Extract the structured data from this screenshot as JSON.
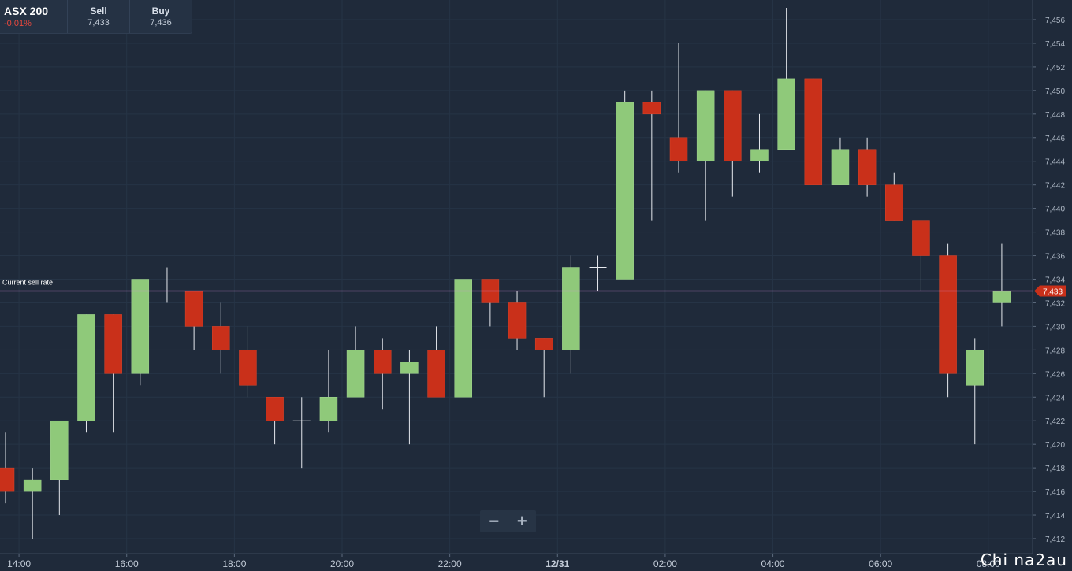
{
  "instrument": {
    "name": "ASX 200",
    "change": "-0.01%"
  },
  "sell": {
    "label": "Sell",
    "value": "7,433"
  },
  "buy": {
    "label": "Buy",
    "value": "7,436"
  },
  "zoom": {
    "minus": "−",
    "plus": "+"
  },
  "current_rate": {
    "label": "Current sell rate",
    "value": "7,433",
    "price": 7433
  },
  "colors": {
    "background": "#1f2a3a",
    "up": "#8fc97a",
    "down": "#c9301a",
    "rate_line": "#d68fd6",
    "rate_badge": "#c9301a"
  },
  "watermark": "Chi na2au",
  "chart_data": {
    "type": "candlestick",
    "y_range": [
      7411,
      7457
    ],
    "y_ticks": [
      7412,
      7414,
      7416,
      7418,
      7420,
      7422,
      7424,
      7426,
      7428,
      7430,
      7432,
      7434,
      7436,
      7438,
      7440,
      7442,
      7444,
      7446,
      7448,
      7450,
      7452,
      7454,
      7456
    ],
    "y_tick_labels": [
      "7,412",
      "7,414",
      "7,416",
      "7,418",
      "7,420",
      "7,422",
      "7,424",
      "7,426",
      "7,428",
      "7,430",
      "7,432",
      "7,434",
      "7,436",
      "7,438",
      "7,440",
      "7,442",
      "7,444",
      "7,446",
      "7,448",
      "7,450",
      "7,452",
      "7,454",
      "7,456"
    ],
    "x_tick_labels": [
      "14:00",
      "16:00",
      "18:00",
      "20:00",
      "22:00",
      "12/31",
      "02:00",
      "04:00",
      "06:00",
      "08:00"
    ],
    "x_tick_candle_index": [
      0.5,
      4.5,
      8.5,
      12.5,
      16.5,
      20.5,
      24.5,
      28.5,
      32.5,
      36.5
    ],
    "candles": [
      {
        "o": 7418,
        "h": 7421,
        "l": 7415,
        "c": 7416
      },
      {
        "o": 7416,
        "h": 7418,
        "l": 7412,
        "c": 7417
      },
      {
        "o": 7417,
        "h": 7422,
        "l": 7414,
        "c": 7422
      },
      {
        "o": 7422,
        "h": 7431,
        "l": 7421,
        "c": 7431
      },
      {
        "o": 7431,
        "h": 7431,
        "l": 7421,
        "c": 7426
      },
      {
        "o": 7426,
        "h": 7434,
        "l": 7425,
        "c": 7434
      },
      {
        "o": 7433,
        "h": 7435,
        "l": 7432,
        "c": 7433
      },
      {
        "o": 7433,
        "h": 7433,
        "l": 7428,
        "c": 7430
      },
      {
        "o": 7430,
        "h": 7432,
        "l": 7426,
        "c": 7428
      },
      {
        "o": 7428,
        "h": 7430,
        "l": 7424,
        "c": 7425
      },
      {
        "o": 7424,
        "h": 7424,
        "l": 7420,
        "c": 7422
      },
      {
        "o": 7422,
        "h": 7424,
        "l": 7418,
        "c": 7422
      },
      {
        "o": 7422,
        "h": 7428,
        "l": 7421,
        "c": 7424
      },
      {
        "o": 7424,
        "h": 7430,
        "l": 7424,
        "c": 7428
      },
      {
        "o": 7428,
        "h": 7429,
        "l": 7423,
        "c": 7426
      },
      {
        "o": 7426,
        "h": 7428,
        "l": 7420,
        "c": 7427
      },
      {
        "o": 7428,
        "h": 7430,
        "l": 7424,
        "c": 7424
      },
      {
        "o": 7424,
        "h": 7434,
        "l": 7424,
        "c": 7434
      },
      {
        "o": 7434,
        "h": 7434,
        "l": 7430,
        "c": 7432
      },
      {
        "o": 7432,
        "h": 7433,
        "l": 7428,
        "c": 7429
      },
      {
        "o": 7429,
        "h": 7429,
        "l": 7424,
        "c": 7428
      },
      {
        "o": 7428,
        "h": 7436,
        "l": 7426,
        "c": 7435
      },
      {
        "o": 7435,
        "h": 7436,
        "l": 7433,
        "c": 7435
      },
      {
        "o": 7434,
        "h": 7450,
        "l": 7434,
        "c": 7449
      },
      {
        "o": 7449,
        "h": 7450,
        "l": 7439,
        "c": 7448
      },
      {
        "o": 7446,
        "h": 7454,
        "l": 7443,
        "c": 7444
      },
      {
        "o": 7444,
        "h": 7450,
        "l": 7439,
        "c": 7450
      },
      {
        "o": 7450,
        "h": 7450,
        "l": 7441,
        "c": 7444
      },
      {
        "o": 7444,
        "h": 7448,
        "l": 7443,
        "c": 7445
      },
      {
        "o": 7445,
        "h": 7457,
        "l": 7445,
        "c": 7451
      },
      {
        "o": 7451,
        "h": 7451,
        "l": 7442,
        "c": 7442
      },
      {
        "o": 7442,
        "h": 7446,
        "l": 7442,
        "c": 7445
      },
      {
        "o": 7445,
        "h": 7446,
        "l": 7441,
        "c": 7442
      },
      {
        "o": 7442,
        "h": 7443,
        "l": 7439,
        "c": 7439
      },
      {
        "o": 7439,
        "h": 7439,
        "l": 7433,
        "c": 7436
      },
      {
        "o": 7436,
        "h": 7437,
        "l": 7424,
        "c": 7426
      },
      {
        "o": 7425,
        "h": 7429,
        "l": 7420,
        "c": 7428
      },
      {
        "o": 7432,
        "h": 7437,
        "l": 7430,
        "c": 7433
      }
    ]
  }
}
